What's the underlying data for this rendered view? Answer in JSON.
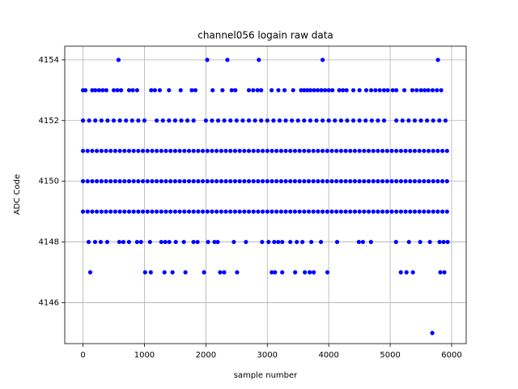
{
  "chart_data": {
    "type": "scatter",
    "title": "channel056 logain raw data",
    "x_label": "sample number",
    "y_label": "ADC Code",
    "xlim": [
      -297,
      6237
    ],
    "ylim": [
      4144.65,
      4154.45
    ],
    "xticks": [
      0,
      1000,
      2000,
      3000,
      4000,
      5000,
      6000
    ],
    "yticks": [
      4146,
      4148,
      4150,
      4152,
      4154
    ],
    "grid": true,
    "series": [
      {
        "color": "#0000ff",
        "x": [
          578,
          2022,
          2350,
          2862,
          3900,
          5777
        ],
        "values": [
          4154,
          4154,
          4154,
          4154,
          4154,
          4154
        ]
      },
      {
        "color": "#0000ff",
        "x": [
          5685
        ],
        "values": [
          4145
        ]
      },
      {
        "color": "#0000ff",
        "x": [
          118,
          1011,
          1103,
          1326,
          1457,
          1667,
          1970,
          2232,
          2298,
          2508,
          3072,
          3125,
          3243,
          3453,
          3611,
          3690,
          3755,
          3978,
          5173,
          5265,
          5370,
          5816,
          5882
        ],
        "values": [
          4147,
          4147,
          4147,
          4147,
          4147,
          4147,
          4147,
          4147,
          4147,
          4147,
          4147,
          4147,
          4147,
          4147,
          4147,
          4147,
          4147,
          4147,
          4147,
          4147,
          4147,
          4147,
          4147
        ]
      },
      {
        "color": "#0000ff",
        "x": [
          92,
          197,
          289,
          394,
          591,
          657,
          748,
          880,
          945,
          1090,
          1274,
          1339,
          1405,
          1510,
          1641,
          1799,
          1865,
          2035,
          2140,
          2193,
          2455,
          2652,
          2915,
          3020,
          3112,
          3177,
          3243,
          3374,
          3480,
          3571,
          3716,
          3873,
          4136,
          4490,
          4556,
          4687,
          5094,
          5305,
          5488,
          5646,
          5803,
          5869,
          5935
        ],
        "values": [
          4148,
          4148,
          4148,
          4148,
          4148,
          4148,
          4148,
          4148,
          4148,
          4148,
          4148,
          4148,
          4148,
          4148,
          4148,
          4148,
          4148,
          4148,
          4148,
          4148,
          4148,
          4148,
          4148,
          4148,
          4148,
          4148,
          4148,
          4148,
          4148,
          4148,
          4148,
          4148,
          4148,
          4148,
          4148,
          4148,
          4148,
          4148,
          4148,
          4148,
          4148,
          4148,
          4148
        ]
      },
      {
        "color": "#0000ff",
        "x": [
          0,
          40,
          150,
          200,
          260,
          320,
          380,
          500,
          560,
          620,
          750,
          810,
          880,
          1110,
          1170,
          1250,
          1400,
          1590,
          1770,
          1830,
          2110,
          2270,
          2420,
          2480,
          2700,
          2770,
          2840,
          2900,
          3070,
          3180,
          3280,
          3420,
          3550,
          3600,
          3650,
          3700,
          3760,
          3820,
          3880,
          3940,
          4000,
          4060,
          4170,
          4230,
          4290,
          4400,
          4500,
          4610,
          4690,
          4760,
          4830,
          4900,
          4960,
          5040,
          5100,
          5230,
          5360,
          5430,
          5500,
          5560,
          5620,
          5690,
          5760,
          5830
        ],
        "values": [
          4153,
          4153,
          4153,
          4153,
          4153,
          4153,
          4153,
          4153,
          4153,
          4153,
          4153,
          4153,
          4153,
          4153,
          4153,
          4153,
          4153,
          4153,
          4153,
          4153,
          4153,
          4153,
          4153,
          4153,
          4153,
          4153,
          4153,
          4153,
          4153,
          4153,
          4153,
          4153,
          4153,
          4153,
          4153,
          4153,
          4153,
          4153,
          4153,
          4153,
          4153,
          4153,
          4153,
          4153,
          4153,
          4153,
          4153,
          4153,
          4153,
          4153,
          4153,
          4153,
          4153,
          4153,
          4153,
          4153,
          4153,
          4153,
          4153,
          4153,
          4153,
          4153,
          4153,
          4153
        ]
      },
      {
        "color": "#0000ff",
        "x": [
          0,
          100,
          200,
          300,
          400,
          500,
          600,
          700,
          800,
          900,
          1000,
          1200,
          1300,
          1400,
          1500,
          1600,
          1700,
          1800,
          2000,
          2100,
          2200,
          2300,
          2400,
          2500,
          2600,
          2700,
          2800,
          2900,
          3000,
          3100,
          3200,
          3300,
          3400,
          3500,
          3600,
          3700,
          3800,
          3900,
          4000,
          4100,
          4200,
          4300,
          4400,
          4500,
          4600,
          4700,
          4800,
          4900,
          5100,
          5200,
          5300,
          5400,
          5500,
          5600,
          5700,
          5800,
          5900
        ],
        "values": [
          4152,
          4152,
          4152,
          4152,
          4152,
          4152,
          4152,
          4152,
          4152,
          4152,
          4152,
          4152,
          4152,
          4152,
          4152,
          4152,
          4152,
          4152,
          4152,
          4152,
          4152,
          4152,
          4152,
          4152,
          4152,
          4152,
          4152,
          4152,
          4152,
          4152,
          4152,
          4152,
          4152,
          4152,
          4152,
          4152,
          4152,
          4152,
          4152,
          4152,
          4152,
          4152,
          4152,
          4152,
          4152,
          4152,
          4152,
          4152,
          4152,
          4152,
          4152,
          4152,
          4152,
          4152,
          4152,
          4152,
          4152
        ]
      },
      {
        "color": "#0000ff",
        "x": [
          0,
          75,
          150,
          225,
          300,
          375,
          450,
          525,
          600,
          675,
          750,
          825,
          900,
          975,
          1050,
          1125,
          1200,
          1275,
          1350,
          1425,
          1500,
          1575,
          1650,
          1725,
          1800,
          1875,
          1950,
          2025,
          2100,
          2175,
          2250,
          2325,
          2400,
          2475,
          2550,
          2625,
          2700,
          2775,
          2850,
          2925,
          3000,
          3075,
          3150,
          3225,
          3300,
          3375,
          3450,
          3525,
          3600,
          3675,
          3750,
          3825,
          3900,
          3975,
          4050,
          4125,
          4200,
          4275,
          4350,
          4425,
          4500,
          4575,
          4650,
          4725,
          4800,
          4875,
          4950,
          5025,
          5100,
          5175,
          5250,
          5325,
          5400,
          5475,
          5550,
          5625,
          5700,
          5775,
          5850,
          5925
        ],
        "values": [
          4151,
          4151,
          4151,
          4151,
          4151,
          4151,
          4151,
          4151,
          4151,
          4151,
          4151,
          4151,
          4151,
          4151,
          4151,
          4151,
          4151,
          4151,
          4151,
          4151,
          4151,
          4151,
          4151,
          4151,
          4151,
          4151,
          4151,
          4151,
          4151,
          4151,
          4151,
          4151,
          4151,
          4151,
          4151,
          4151,
          4151,
          4151,
          4151,
          4151,
          4151,
          4151,
          4151,
          4151,
          4151,
          4151,
          4151,
          4151,
          4151,
          4151,
          4151,
          4151,
          4151,
          4151,
          4151,
          4151,
          4151,
          4151,
          4151,
          4151,
          4151,
          4151,
          4151,
          4151,
          4151,
          4151,
          4151,
          4151,
          4151,
          4151,
          4151,
          4151,
          4151,
          4151,
          4151,
          4151,
          4151,
          4151,
          4151,
          4151
        ]
      },
      {
        "color": "#0000ff",
        "x": [
          0,
          75,
          150,
          225,
          300,
          375,
          450,
          525,
          600,
          675,
          750,
          825,
          900,
          975,
          1050,
          1125,
          1200,
          1275,
          1350,
          1425,
          1500,
          1575,
          1650,
          1725,
          1800,
          1875,
          1950,
          2025,
          2100,
          2175,
          2250,
          2325,
          2400,
          2475,
          2550,
          2625,
          2700,
          2775,
          2850,
          2925,
          3000,
          3075,
          3150,
          3225,
          3300,
          3375,
          3450,
          3525,
          3600,
          3675,
          3750,
          3825,
          3900,
          3975,
          4050,
          4125,
          4200,
          4275,
          4350,
          4425,
          4500,
          4575,
          4650,
          4725,
          4800,
          4875,
          4950,
          5025,
          5100,
          5175,
          5250,
          5325,
          5400,
          5475,
          5550,
          5625,
          5700,
          5775,
          5850,
          5925
        ],
        "values": [
          4150,
          4150,
          4150,
          4150,
          4150,
          4150,
          4150,
          4150,
          4150,
          4150,
          4150,
          4150,
          4150,
          4150,
          4150,
          4150,
          4150,
          4150,
          4150,
          4150,
          4150,
          4150,
          4150,
          4150,
          4150,
          4150,
          4150,
          4150,
          4150,
          4150,
          4150,
          4150,
          4150,
          4150,
          4150,
          4150,
          4150,
          4150,
          4150,
          4150,
          4150,
          4150,
          4150,
          4150,
          4150,
          4150,
          4150,
          4150,
          4150,
          4150,
          4150,
          4150,
          4150,
          4150,
          4150,
          4150,
          4150,
          4150,
          4150,
          4150,
          4150,
          4150,
          4150,
          4150,
          4150,
          4150,
          4150,
          4150,
          4150,
          4150,
          4150,
          4150,
          4150,
          4150,
          4150,
          4150,
          4150,
          4150,
          4150,
          4150
        ]
      },
      {
        "color": "#0000ff",
        "x": [
          0,
          75,
          150,
          225,
          300,
          375,
          450,
          525,
          600,
          675,
          750,
          825,
          900,
          975,
          1050,
          1125,
          1200,
          1275,
          1350,
          1425,
          1500,
          1575,
          1650,
          1725,
          1800,
          1875,
          1950,
          2025,
          2100,
          2175,
          2250,
          2325,
          2400,
          2475,
          2550,
          2625,
          2700,
          2775,
          2850,
          2925,
          3000,
          3075,
          3150,
          3225,
          3300,
          3375,
          3450,
          3525,
          3600,
          3675,
          3750,
          3825,
          3900,
          3975,
          4050,
          4125,
          4200,
          4275,
          4350,
          4425,
          4500,
          4575,
          4650,
          4725,
          4800,
          4875,
          4950,
          5025,
          5100,
          5175,
          5250,
          5325,
          5400,
          5475,
          5550,
          5625,
          5700,
          5775,
          5850,
          5925
        ],
        "values": [
          4149,
          4149,
          4149,
          4149,
          4149,
          4149,
          4149,
          4149,
          4149,
          4149,
          4149,
          4149,
          4149,
          4149,
          4149,
          4149,
          4149,
          4149,
          4149,
          4149,
          4149,
          4149,
          4149,
          4149,
          4149,
          4149,
          4149,
          4149,
          4149,
          4149,
          4149,
          4149,
          4149,
          4149,
          4149,
          4149,
          4149,
          4149,
          4149,
          4149,
          4149,
          4149,
          4149,
          4149,
          4149,
          4149,
          4149,
          4149,
          4149,
          4149,
          4149,
          4149,
          4149,
          4149,
          4149,
          4149,
          4149,
          4149,
          4149,
          4149,
          4149,
          4149,
          4149,
          4149,
          4149,
          4149,
          4149,
          4149,
          4149,
          4149,
          4149,
          4149,
          4149,
          4149,
          4149,
          4149,
          4149,
          4149,
          4149,
          4149
        ]
      }
    ]
  }
}
